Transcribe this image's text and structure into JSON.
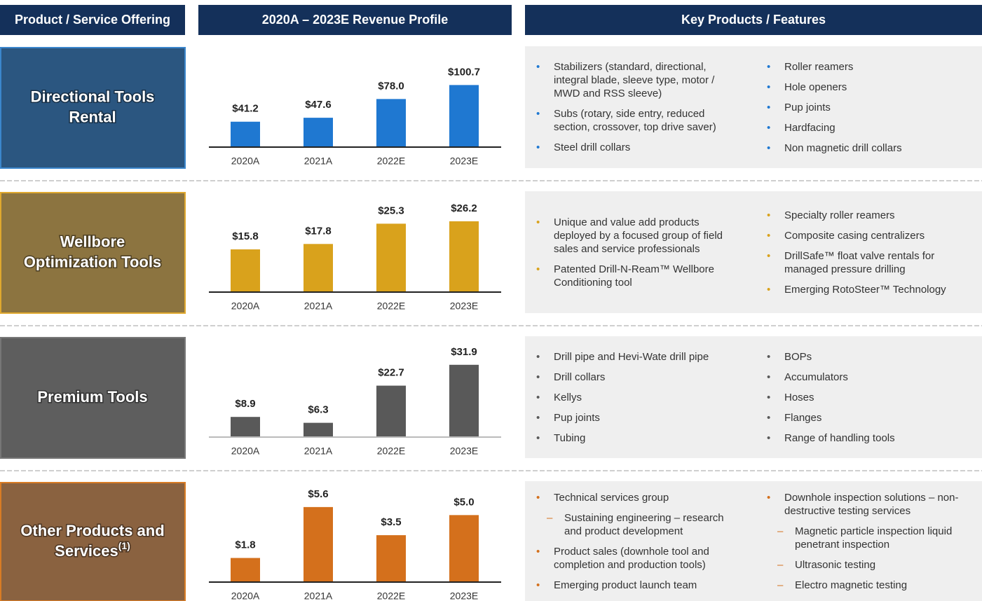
{
  "headers": [
    "Product / Service Offering",
    "2020A – 2023E Revenue Profile",
    "Key Products / Features"
  ],
  "rows": [
    {
      "label_lines": [
        "Directional Tools",
        "Rental"
      ],
      "features": [
        [
          "Stabilizers (standard, directional, integral blade, sleeve type, motor / MWD and RSS sleeve)",
          "Subs (rotary, side entry, reduced section, crossover, top drive saver)",
          "Steel drill collars"
        ],
        [
          "Roller reamers",
          "Hole openers",
          "Pup joints",
          "Hardfacing",
          "Non magnetic drill collars"
        ]
      ]
    },
    {
      "label_lines": [
        "Wellbore",
        "Optimization Tools"
      ],
      "features": [
        [
          "Unique and value add products deployed by a focused group of field sales and service professionals",
          "Patented Drill-N-Ream™ Wellbore Conditioning tool"
        ],
        [
          "Specialty roller reamers",
          "Composite casing centralizers",
          "DrillSafe™ float valve rentals for managed pressure drilling",
          "Emerging RotoSteer™ Technology"
        ]
      ]
    },
    {
      "label_lines": [
        "Premium Tools"
      ],
      "features": [
        [
          "Drill pipe and Hevi-Wate drill pipe",
          "Drill collars",
          "Kellys",
          "Pup joints",
          "Tubing"
        ],
        [
          "BOPs",
          "Accumulators",
          "Hoses",
          "Flanges",
          "Range of handling tools"
        ]
      ]
    },
    {
      "label_lines": [
        "Other Products and",
        "Services"
      ],
      "footnote": "(1)",
      "features": [
        [
          {
            "text": "Technical services group",
            "sub": [
              "Sustaining engineering – research and product development"
            ]
          },
          "Product sales (downhole tool and completion and production tools)",
          "Emerging product launch team"
        ],
        [
          {
            "text": "Downhole inspection solutions – non-destructive testing services",
            "sub": [
              "Magnetic particle inspection liquid penetrant inspection",
              "Ultrasonic testing",
              "Electro magnetic testing"
            ]
          }
        ]
      ]
    }
  ],
  "chart_data": [
    {
      "type": "bar",
      "categories": [
        "2020A",
        "2021A",
        "2022E",
        "2023E"
      ],
      "values": [
        41.2,
        47.6,
        78.0,
        100.7
      ],
      "value_labels": [
        "$41.2",
        "$47.6",
        "$78.0",
        "$100.7"
      ],
      "color": "#1f78d1",
      "ylim": [
        0,
        125
      ]
    },
    {
      "type": "bar",
      "categories": [
        "2020A",
        "2021A",
        "2022E",
        "2023E"
      ],
      "values": [
        15.8,
        17.8,
        25.3,
        26.2
      ],
      "value_labels": [
        "$15.8",
        "$17.8",
        "$25.3",
        "$26.2"
      ],
      "color": "#d9a21c",
      "ylim": [
        0,
        28.5
      ]
    },
    {
      "type": "bar",
      "categories": [
        "2020A",
        "2021A",
        "2022E",
        "2023E"
      ],
      "values": [
        8.9,
        6.3,
        22.7,
        31.9
      ],
      "value_labels": [
        "$8.9",
        "$6.3",
        "$22.7",
        "$31.9"
      ],
      "color": "#595959",
      "ylim": [
        0,
        34
      ]
    },
    {
      "type": "bar",
      "categories": [
        "2020A",
        "2021A",
        "2022E",
        "2023E"
      ],
      "values": [
        1.8,
        5.6,
        3.5,
        5.0
      ],
      "value_labels": [
        "$1.8",
        "$5.6",
        "$3.5",
        "$5.0"
      ],
      "color": "#d4701c",
      "ylim": [
        0,
        5.75
      ]
    }
  ]
}
